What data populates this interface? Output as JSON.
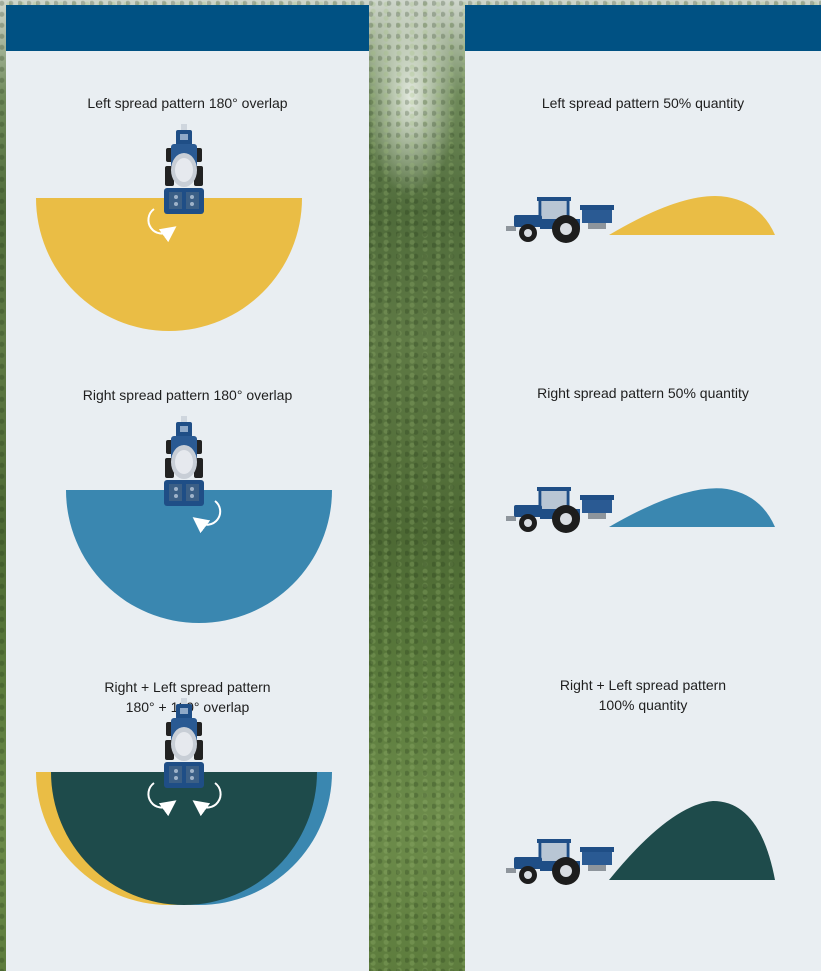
{
  "left_panel": {
    "header": "",
    "items": [
      {
        "caption": "Left spread pattern 180° overlap"
      },
      {
        "caption": "Right spread pattern 180° overlap"
      },
      {
        "caption": "Right + Left spread pattern\n180° + 180° overlap"
      }
    ]
  },
  "right_panel": {
    "header": "",
    "items": [
      {
        "caption": "Left spread pattern 50% quantity"
      },
      {
        "caption": "Right spread pattern 50% quantity"
      },
      {
        "caption": "Right + Left spread pattern\n100% quantity"
      }
    ]
  },
  "colors": {
    "header": "#005183",
    "panel": "#e9eef2",
    "left_pattern": "#eabd45",
    "right_pattern": "#3a87b0",
    "combined_pattern": "#1e4b4b",
    "tractor_body": "#1f4e86"
  },
  "icons": [
    "tractor-top-view-icon",
    "rotation-arrow-icon",
    "tractor-side-view-icon",
    "spread-curve-icon"
  ]
}
